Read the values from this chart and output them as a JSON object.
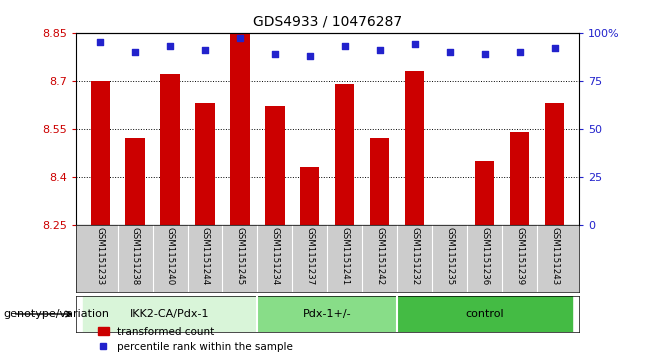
{
  "title": "GDS4933 / 10476287",
  "samples": [
    "GSM1151233",
    "GSM1151238",
    "GSM1151240",
    "GSM1151244",
    "GSM1151245",
    "GSM1151234",
    "GSM1151237",
    "GSM1151241",
    "GSM1151242",
    "GSM1151232",
    "GSM1151235",
    "GSM1151236",
    "GSM1151239",
    "GSM1151243"
  ],
  "bar_values": [
    8.7,
    8.52,
    8.72,
    8.63,
    8.85,
    8.62,
    8.43,
    8.69,
    8.52,
    8.73,
    8.25,
    8.45,
    8.54,
    8.63
  ],
  "percentile_values": [
    95,
    90,
    93,
    91,
    97,
    89,
    88,
    93,
    91,
    94,
    90,
    89,
    90,
    92
  ],
  "bar_color": "#cc0000",
  "percentile_color": "#2222cc",
  "ylim_left": [
    8.25,
    8.85
  ],
  "ylim_right": [
    0,
    100
  ],
  "yticks_left": [
    8.25,
    8.4,
    8.55,
    8.7,
    8.85
  ],
  "ytick_labels_left": [
    "8.25",
    "8.4",
    "8.55",
    "8.7",
    "8.85"
  ],
  "yticks_right": [
    0,
    25,
    50,
    75,
    100
  ],
  "ytick_labels_right": [
    "0",
    "25",
    "50",
    "75",
    "100%"
  ],
  "groups": [
    {
      "label": "IKK2-CA/Pdx-1",
      "start": 0,
      "end": 5,
      "color": "#d9f5d9"
    },
    {
      "label": "Pdx-1+/-",
      "start": 5,
      "end": 9,
      "color": "#88dd88"
    },
    {
      "label": "control",
      "start": 9,
      "end": 14,
      "color": "#44bb44"
    }
  ],
  "xlabel_group": "genotype/variation",
  "legend_bar_label": "transformed count",
  "legend_pct_label": "percentile rank within the sample",
  "background_plot": "#ffffff",
  "background_gray": "#cccccc",
  "bar_bottom": 8.25
}
